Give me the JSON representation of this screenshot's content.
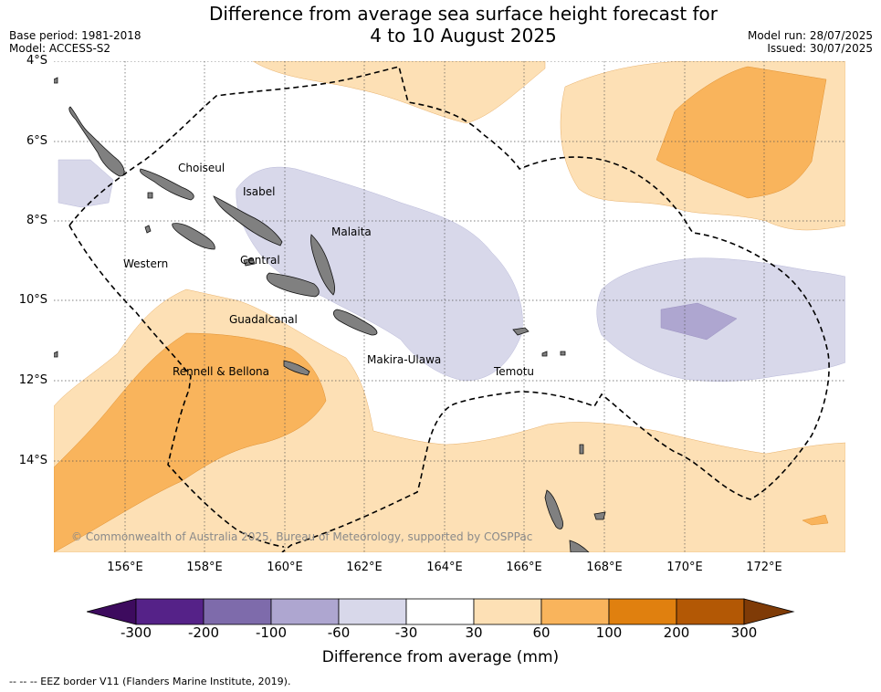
{
  "title": {
    "line1": "Difference from average sea surface height forecast for",
    "line2": "4 to 10 August 2025"
  },
  "meta_left": {
    "base_period": "Base period: 1981-2018",
    "model": "Model: ACCESS-S2"
  },
  "meta_right": {
    "model_run": "Model run: 28/07/2025",
    "issued": "Issued: 30/07/2025"
  },
  "latitude_labels": [
    "4°S",
    "6°S",
    "8°S",
    "10°S",
    "12°S",
    "14°S"
  ],
  "longitude_labels": [
    "156°E",
    "158°E",
    "160°E",
    "162°E",
    "164°E",
    "166°E",
    "168°E",
    "170°E",
    "172°E"
  ],
  "place_labels": {
    "choiseul": "Choiseul",
    "isabel": "Isabel",
    "malaita": "Malaita",
    "western": "Western",
    "central": "Central",
    "guadalcanal": "Guadalcanal",
    "makira_ulawa": "Makira-Ulawa",
    "temotu": "Temotu",
    "rennell_bellona": "Rennell & Bellona"
  },
  "copyright": "© Commonwealth of Australia 2025, Bureau of Meteorology, supported by COSPPac",
  "colorbar": {
    "ticks": [
      "-300",
      "-200",
      "-100",
      "-60",
      "-30",
      "30",
      "60",
      "100",
      "200",
      "300"
    ],
    "colors": [
      "#3d0b5e",
      "#552288",
      "#7e6bab",
      "#aea6d0",
      "#d8d8ea",
      "#ffffff",
      "#fde0b5",
      "#f9b45c",
      "#e0800f",
      "#b35805",
      "#7f3b07"
    ],
    "title": "Difference from average (mm)"
  },
  "footnote": "--  --  -- EEZ border V11 (Flanders Marine Institute, 2019)."
}
